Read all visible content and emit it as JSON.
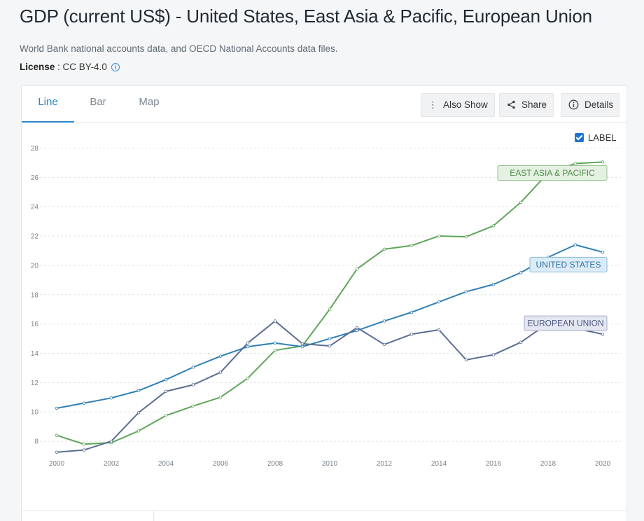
{
  "page": {
    "title": "GDP (current US$) - United States, East Asia & Pacific, European Union",
    "source": "World Bank national accounts data, and OECD National Accounts data files.",
    "license_label": "License",
    "license_sep": " : ",
    "license_value": "CC BY-4.0",
    "info_glyph": "i"
  },
  "tabs": [
    {
      "label": "Line",
      "active": true
    },
    {
      "label": "Bar",
      "active": false
    },
    {
      "label": "Map",
      "active": false
    }
  ],
  "toolbar": {
    "also_show": "Also Show",
    "share": "Share",
    "details": "Details"
  },
  "label_toggle": {
    "label": "LABEL",
    "checked": true
  },
  "chart_data": {
    "type": "line",
    "x": [
      2000,
      2001,
      2002,
      2003,
      2004,
      2005,
      2006,
      2007,
      2008,
      2009,
      2010,
      2011,
      2012,
      2013,
      2014,
      2015,
      2016,
      2017,
      2018,
      2019,
      2020
    ],
    "x_ticks": [
      2000,
      2002,
      2004,
      2006,
      2008,
      2010,
      2012,
      2014,
      2016,
      2018,
      2020
    ],
    "y_ticks": [
      8,
      10,
      12,
      14,
      16,
      18,
      20,
      22,
      24,
      26,
      28
    ],
    "ylim": [
      7,
      28.5
    ],
    "xlim": [
      2000,
      2020
    ],
    "grid": true,
    "series": [
      {
        "name": "EAST ASIA & PACIFIC",
        "color": "#5fa55a",
        "label_bg": "#e4f1e2",
        "label_border": "#93c48e",
        "label_text": "#4f8c4a",
        "values": [
          8.4,
          7.8,
          7.9,
          8.7,
          9.75,
          10.4,
          11.0,
          12.3,
          14.2,
          14.5,
          17.0,
          19.75,
          21.1,
          21.35,
          22.0,
          21.95,
          22.7,
          24.3,
          26.3,
          26.95,
          27.05
        ]
      },
      {
        "name": "UNITED STATES",
        "color": "#2f7fb5",
        "label_bg": "#dcecf7",
        "label_border": "#86b9db",
        "label_text": "#2f6f9f",
        "values": [
          10.25,
          10.6,
          10.95,
          11.45,
          12.2,
          13.05,
          13.8,
          14.45,
          14.7,
          14.45,
          15.0,
          15.55,
          16.2,
          16.8,
          17.5,
          18.2,
          18.7,
          19.5,
          20.55,
          21.4,
          20.9
        ]
      },
      {
        "name": "EUROPEAN UNION",
        "color": "#5b6d94",
        "label_bg": "#e4e6f1",
        "label_border": "#a6acc8",
        "label_text": "#4e5a80",
        "values": [
          7.25,
          7.4,
          8.0,
          9.95,
          11.4,
          11.85,
          12.7,
          14.7,
          16.2,
          14.65,
          14.5,
          15.75,
          14.6,
          15.3,
          15.6,
          13.55,
          13.9,
          14.75,
          16.05,
          15.7,
          15.3
        ]
      }
    ]
  }
}
